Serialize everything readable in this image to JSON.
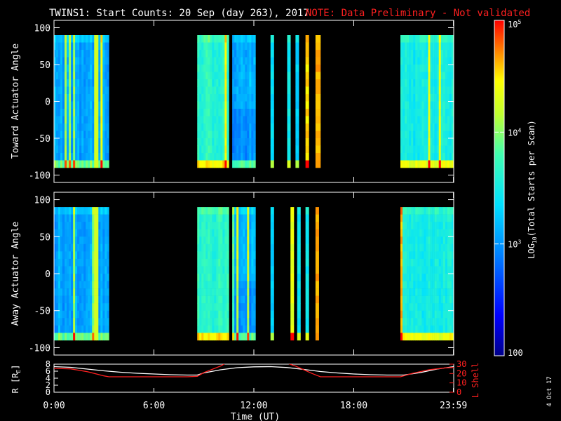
{
  "title": "TWINS1: Start Counts: 20 Sep (day 263), 2017",
  "note": "NOTE: Data Preliminary - Not validated",
  "date_stamp": "4 Oct 17",
  "colors": {
    "note": "#ff2020",
    "lshell": "#ff2020",
    "r_line": "#ffffff",
    "frame": "#ffffff"
  },
  "colorbar": {
    "label": "LOG10(Total Starts per Scan)",
    "label_main": "LOG",
    "label_sub": "10",
    "label_rest": "(Total Starts per Scan)",
    "ticks": [
      {
        "value": 100,
        "label": "100",
        "base": "",
        "exp": ""
      },
      {
        "value": 1000,
        "label": "",
        "base": "10",
        "exp": "3"
      },
      {
        "value": 10000,
        "label": "",
        "base": "10",
        "exp": "4"
      },
      {
        "value": 100000,
        "label": "",
        "base": "10",
        "exp": "5"
      }
    ],
    "range": [
      100,
      100000
    ],
    "scale": "log"
  },
  "time_axis": {
    "label": "Time (UT)",
    "ticks": [
      {
        "hour": 0,
        "label": "0:00"
      },
      {
        "hour": 6,
        "label": "6:00"
      },
      {
        "hour": 12,
        "label": "12:00"
      },
      {
        "hour": 18,
        "label": "18:00"
      },
      {
        "hour": 23.983,
        "label": "23:59"
      }
    ],
    "range": [
      0,
      24
    ]
  },
  "chart_data": [
    {
      "type": "heatmap",
      "ylabel": "Toward Actuator Angle",
      "ylim": [
        -110,
        110
      ],
      "yticks": [
        -100,
        -50,
        0,
        50,
        100
      ],
      "angle_coverage": [
        -90,
        90
      ],
      "data_intervals_hours": [
        [
          0.0,
          3.3
        ],
        [
          8.6,
          10.5
        ],
        [
          10.7,
          12.1
        ],
        [
          13.0,
          13.2
        ],
        [
          14.0,
          14.2
        ],
        [
          14.5,
          14.7
        ],
        [
          15.1,
          15.3
        ],
        [
          15.7,
          16.0
        ],
        [
          20.8,
          24.0
        ]
      ],
      "color_scale": "log",
      "zlim": [
        100,
        100000
      ]
    },
    {
      "type": "heatmap",
      "ylabel": "Away Actuator Angle",
      "ylim": [
        -110,
        110
      ],
      "yticks": [
        -100,
        -50,
        0,
        50,
        100
      ],
      "angle_coverage": [
        -90,
        90
      ],
      "data_intervals_hours": [
        [
          0.0,
          3.3
        ],
        [
          8.6,
          10.5
        ],
        [
          10.7,
          12.1
        ],
        [
          13.0,
          13.2
        ],
        [
          14.2,
          14.4
        ],
        [
          14.6,
          14.8
        ],
        [
          15.1,
          15.3
        ],
        [
          15.7,
          15.9
        ],
        [
          20.8,
          24.0
        ]
      ],
      "color_scale": "log",
      "zlim": [
        100,
        100000
      ]
    },
    {
      "type": "line",
      "ylabel_left": "R [RE]",
      "ylabel_left_main": "R [R",
      "ylabel_left_sub": "E",
      "ylabel_left_end": "]",
      "ylabel_right": "L Shell",
      "left_ylim": [
        0,
        8
      ],
      "left_yticks": [
        0,
        2,
        4,
        6,
        8
      ],
      "right_ylim": [
        0,
        30
      ],
      "right_yticks": [
        0,
        10,
        20,
        30
      ],
      "series": [
        {
          "name": "R [RE]",
          "axis": "left",
          "x": [
            0,
            1,
            2,
            3,
            4,
            5,
            6,
            7,
            8,
            8.6,
            9,
            10,
            11,
            12,
            13,
            14,
            15,
            16,
            17,
            18,
            19,
            20,
            21,
            22,
            23,
            24
          ],
          "y": [
            7.3,
            7.1,
            6.6,
            6.1,
            5.7,
            5.4,
            5.2,
            5.0,
            4.9,
            4.9,
            5.5,
            6.4,
            7.0,
            7.25,
            7.3,
            7.05,
            6.5,
            5.9,
            5.5,
            5.2,
            5.0,
            4.9,
            4.9,
            5.6,
            6.6,
            7.3
          ]
        },
        {
          "name": "L Shell",
          "axis": "right",
          "x": [
            0,
            1,
            2,
            3,
            3.3,
            4,
            6,
            8,
            8.6,
            9,
            10,
            10.3,
            14.0,
            14.5,
            15,
            15.5,
            16,
            18,
            20,
            20.8,
            21.5,
            22.5,
            23.5,
            24
          ],
          "y": [
            25.5,
            25.0,
            22.0,
            17.5,
            16.5,
            16.5,
            16.5,
            16.5,
            17.0,
            21.0,
            28.0,
            31.0,
            31.0,
            28.0,
            24.0,
            20.0,
            16.5,
            16.5,
            16.5,
            16.5,
            20.0,
            24.0,
            26.0,
            26.5
          ]
        }
      ]
    }
  ]
}
